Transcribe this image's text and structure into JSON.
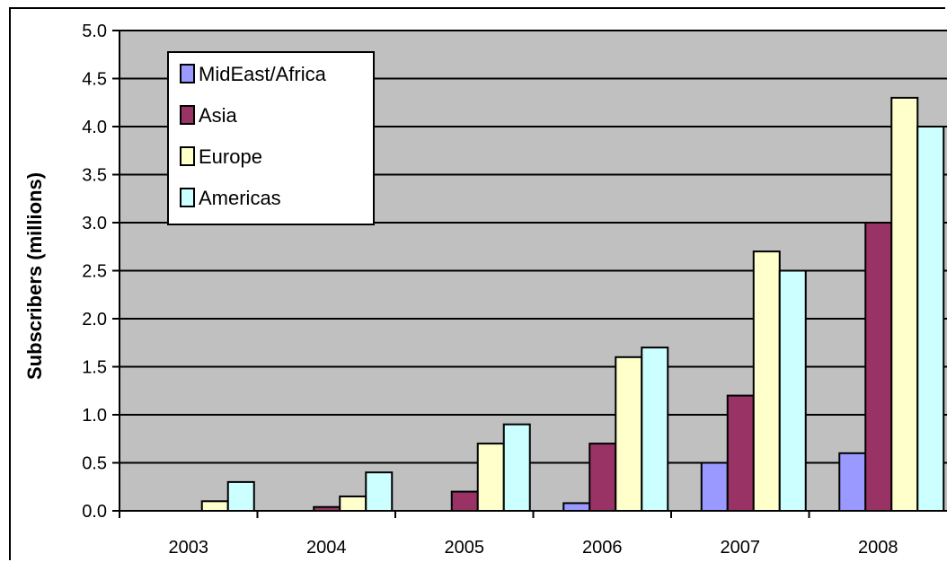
{
  "chart_data": {
    "type": "bar",
    "title": "",
    "xlabel": "",
    "ylabel": "Subscribers (millions)",
    "categories": [
      "2003",
      "2004",
      "2005",
      "2006",
      "2007",
      "2008"
    ],
    "ylim": [
      0,
      5
    ],
    "yticks": [
      "0.0",
      "0.5",
      "1.0",
      "1.5",
      "2.0",
      "2.5",
      "3.0",
      "3.5",
      "4.0",
      "4.5",
      "5.0"
    ],
    "grid": true,
    "legend_position": "top-left",
    "background_color": "#c0c0c0",
    "series": [
      {
        "name": "MidEast/Africa",
        "color": "#9999ff",
        "values": [
          0,
          0,
          0,
          0.08,
          0.5,
          0.6
        ]
      },
      {
        "name": "Asia",
        "color": "#993366",
        "values": [
          0,
          0.04,
          0.2,
          0.7,
          1.2,
          3.0
        ]
      },
      {
        "name": "Europe",
        "color": "#ffffcc",
        "values": [
          0.1,
          0.15,
          0.7,
          1.6,
          2.7,
          4.3
        ]
      },
      {
        "name": "Americas",
        "color": "#ccffff",
        "values": [
          0.3,
          0.4,
          0.9,
          1.7,
          2.5,
          4.0
        ]
      }
    ]
  }
}
